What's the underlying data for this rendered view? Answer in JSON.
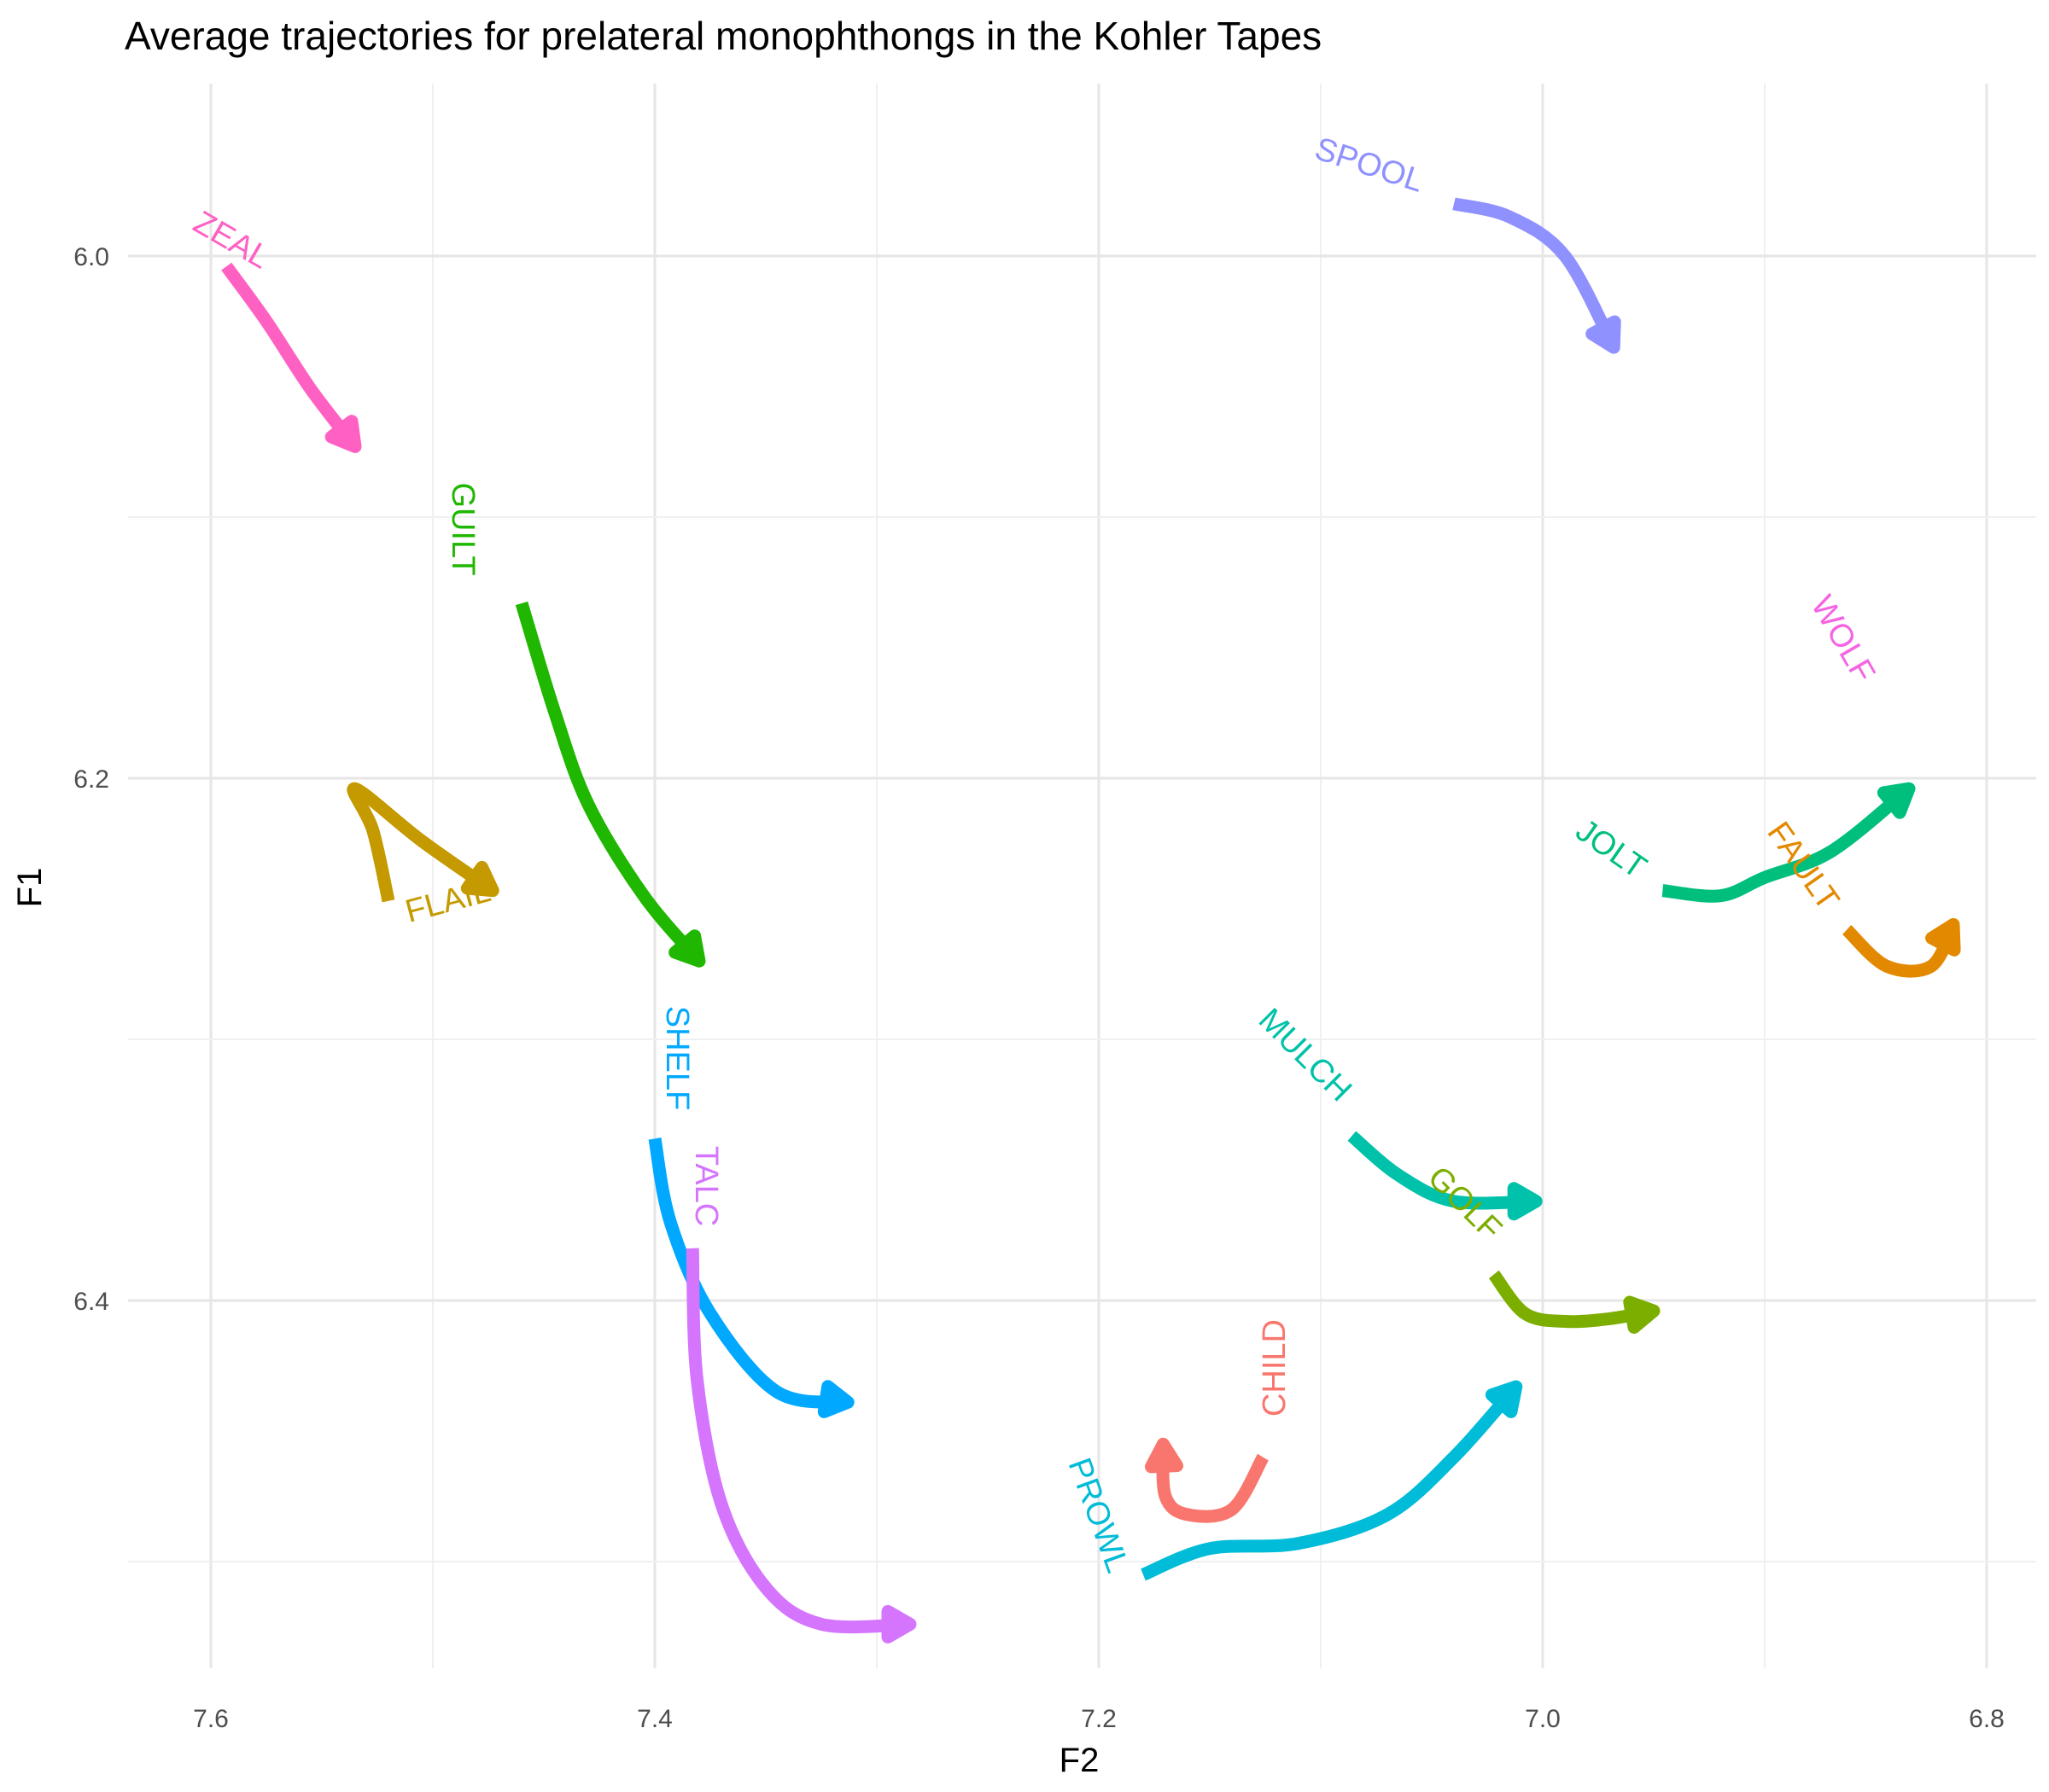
{
  "chart_data": {
    "type": "line",
    "title": "Average trajectories for prelateral monophthongs in the Kohler Tapes",
    "xlabel": "F2",
    "ylabel": "F1",
    "x_reversed": true,
    "y_reversed": true,
    "xlim": [
      6.78,
      7.63
    ],
    "ylim": [
      5.935,
      6.64
    ],
    "x_ticks": [
      7.6,
      7.4,
      7.2,
      7.0,
      6.8
    ],
    "x_tick_labels": [
      "7.6",
      "7.4",
      "7.2",
      "7.0",
      "6.8"
    ],
    "y_ticks": [
      6.0,
      6.2,
      6.4
    ],
    "y_tick_labels": [
      "6.0",
      "6.2",
      "6.4"
    ],
    "grid": true,
    "legend": "none",
    "series": [
      {
        "name": "ZEAL",
        "color": "#FF61C3",
        "label_angle": 30,
        "points": [
          [
            7.593,
            6.004
          ],
          [
            7.575,
            6.025
          ],
          [
            7.555,
            6.051
          ],
          [
            7.535,
            6.073
          ]
        ]
      },
      {
        "name": "SPOOL",
        "color": "#8F91FF",
        "label_angle": 18,
        "points": [
          [
            7.04,
            5.98
          ],
          [
            7.015,
            5.985
          ],
          [
            6.99,
            6.0
          ],
          [
            6.968,
            6.035
          ]
        ]
      },
      {
        "name": "GUILT",
        "color": "#1FB700",
        "label_angle": 90,
        "points": [
          [
            7.46,
            6.133
          ],
          [
            7.445,
            6.175
          ],
          [
            7.43,
            6.21
          ],
          [
            7.405,
            6.245
          ],
          [
            7.38,
            6.27
          ]
        ]
      },
      {
        "name": "WOLF",
        "color": "#F564E3",
        "label_angle": 60,
        "points": []
      },
      {
        "name": "FLAIL",
        "color": "#C49A00",
        "label_angle": -15,
        "points": [
          [
            7.52,
            6.247
          ],
          [
            7.527,
            6.22
          ],
          [
            7.535,
            6.204
          ],
          [
            7.505,
            6.224
          ],
          [
            7.473,
            6.243
          ]
        ]
      },
      {
        "name": "JOLT",
        "color": "#00BF7D",
        "label_angle": 35,
        "points": [
          [
            6.946,
            6.243
          ],
          [
            6.92,
            6.245
          ],
          [
            6.9,
            6.238
          ],
          [
            6.87,
            6.228
          ],
          [
            6.835,
            6.204
          ]
        ]
      },
      {
        "name": "FAULT",
        "color": "#E38900",
        "label_angle": 55,
        "points": [
          [
            6.863,
            6.258
          ],
          [
            6.845,
            6.272
          ],
          [
            6.825,
            6.272
          ],
          [
            6.815,
            6.256
          ]
        ]
      },
      {
        "name": "SHELF",
        "color": "#00A9FF",
        "label_angle": 90,
        "points": [
          [
            7.4,
            6.338
          ],
          [
            7.393,
            6.37
          ],
          [
            7.375,
            6.405
          ],
          [
            7.345,
            6.435
          ],
          [
            7.313,
            6.439
          ]
        ]
      },
      {
        "name": "TALC",
        "color": "#D575FE",
        "label_angle": 90,
        "points": [
          [
            7.383,
            6.38
          ],
          [
            7.381,
            6.43
          ],
          [
            7.37,
            6.478
          ],
          [
            7.35,
            6.51
          ],
          [
            7.325,
            6.524
          ],
          [
            7.285,
            6.524
          ]
        ]
      },
      {
        "name": "MULCH",
        "color": "#00C1A9",
        "label_angle": 45,
        "points": [
          [
            7.086,
            6.337
          ],
          [
            7.065,
            6.352
          ],
          [
            7.04,
            6.362
          ],
          [
            7.003,
            6.362
          ]
        ]
      },
      {
        "name": "GOLF",
        "color": "#7CAE00",
        "label_angle": 45,
        "points": [
          [
            7.022,
            6.39
          ],
          [
            7.008,
            6.405
          ],
          [
            6.99,
            6.408
          ],
          [
            6.97,
            6.407
          ],
          [
            6.95,
            6.404
          ]
        ]
      },
      {
        "name": "CHILD",
        "color": "#F8766D",
        "label_angle": -90,
        "points": [
          [
            7.126,
            6.46
          ],
          [
            7.14,
            6.48
          ],
          [
            7.16,
            6.482
          ],
          [
            7.17,
            6.475
          ],
          [
            7.171,
            6.455
          ]
        ]
      },
      {
        "name": "PROWL",
        "color": "#00BCD8",
        "label_angle": 70,
        "points": [
          [
            7.18,
            6.505
          ],
          [
            7.15,
            6.495
          ],
          [
            7.11,
            6.493
          ],
          [
            7.07,
            6.482
          ],
          [
            7.04,
            6.46
          ],
          [
            7.012,
            6.433
          ]
        ]
      }
    ]
  }
}
